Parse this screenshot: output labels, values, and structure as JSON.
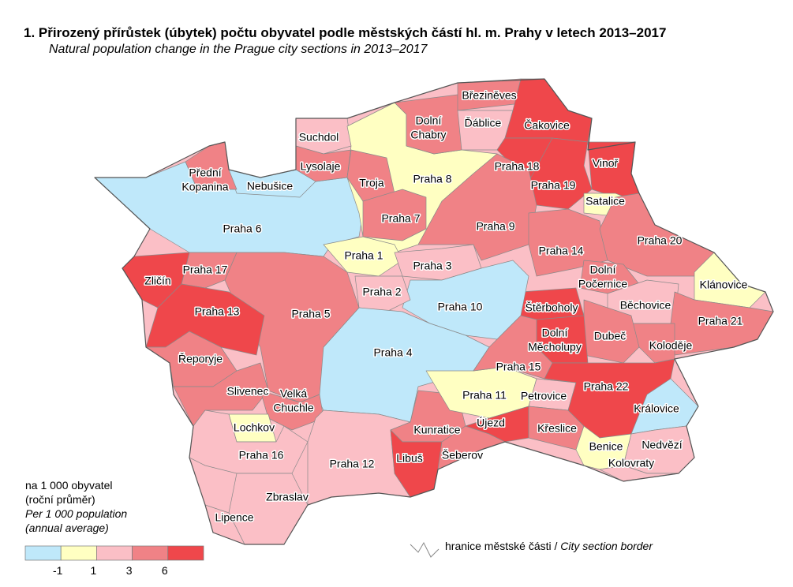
{
  "title": "1. Přirozený přírůstek (úbytek) počtu obyvatel podle městských částí hl. m. Prahy v letech 2013–2017",
  "subtitle": "Natural population change in the Prague city sections in 2013–2017",
  "districts": [
    {
      "label": [
        "Praha 6"
      ],
      "color": "#bfe8fa"
    },
    {
      "label": [
        "Nebušice"
      ],
      "color": "#bfe8fa"
    },
    {
      "label": [
        "Přední",
        "Kopanina"
      ],
      "color": "#f08286"
    },
    {
      "label": [
        "Suchdol"
      ],
      "color": "#fbbfc6"
    },
    {
      "label": [
        "Lysolaje"
      ],
      "color": "#f08286"
    },
    {
      "label": [
        "Praha 8"
      ],
      "color": "#ffffc2"
    },
    {
      "label": [
        "Troja"
      ],
      "color": "#f08286"
    },
    {
      "label": [
        "Dolní",
        "Chabry"
      ],
      "color": "#f08286"
    },
    {
      "label": [
        "Březiněves"
      ],
      "color": "#f08286"
    },
    {
      "label": [
        "Ďáblice"
      ],
      "color": "#fbbfc6"
    },
    {
      "label": [
        "Čakovice"
      ],
      "color": "#ef474b"
    },
    {
      "label": [
        "Praha 18"
      ],
      "color": "#ef474b"
    },
    {
      "label": [
        "Praha 19"
      ],
      "color": "#ef474b"
    },
    {
      "label": [
        "Vinoř"
      ],
      "color": "#ef474b"
    },
    {
      "label": [
        "Satalice"
      ],
      "color": "#ffffc2"
    },
    {
      "label": [
        "Praha 7"
      ],
      "color": "#f08286"
    },
    {
      "label": [
        "Praha 9"
      ],
      "color": "#f08286"
    },
    {
      "label": [
        "Praha 1"
      ],
      "color": "#ffffc2"
    },
    {
      "label": [
        "Praha 3"
      ],
      "color": "#fbbfc6"
    },
    {
      "label": [
        "Praha 14"
      ],
      "color": "#f08286"
    },
    {
      "label": [
        "Praha 20"
      ],
      "color": "#f08286"
    },
    {
      "label": [
        "Dolní",
        "Počernice"
      ],
      "color": "#f08286"
    },
    {
      "label": [
        "Klánovice"
      ],
      "color": "#ffffc2"
    },
    {
      "label": [
        "Běchovice"
      ],
      "color": "#fbbfc6"
    },
    {
      "label": [
        "Praha 21"
      ],
      "color": "#f08286"
    },
    {
      "label": [
        "Koloděje"
      ],
      "color": "#f08286"
    },
    {
      "label": [
        "Dubeč"
      ],
      "color": "#f08286"
    },
    {
      "label": [
        "Štěrboholy"
      ],
      "color": "#ef474b"
    },
    {
      "label": [
        "Dolní",
        "Měcholupy"
      ],
      "color": "#ef474b"
    },
    {
      "label": [
        "Praha 10"
      ],
      "color": "#bfe8fa"
    },
    {
      "label": [
        "Praha 2"
      ],
      "color": "#fbbfc6"
    },
    {
      "label": [
        "Praha 4"
      ],
      "color": "#bfe8fa"
    },
    {
      "label": [
        "Praha 5"
      ],
      "color": "#f08286"
    },
    {
      "label": [
        "Praha 17"
      ],
      "color": "#f08286"
    },
    {
      "label": [
        "Zličín"
      ],
      "color": "#ef474b"
    },
    {
      "label": [
        "Praha 13"
      ],
      "color": "#ef474b"
    },
    {
      "label": [
        "Řeporyje"
      ],
      "color": "#f08286"
    },
    {
      "label": [
        "Slivenec"
      ],
      "color": "#f08286"
    },
    {
      "label": [
        "Velká",
        "Chuchle"
      ],
      "color": "#f08286"
    },
    {
      "label": [
        "Lochkov"
      ],
      "color": "#ffffc2"
    },
    {
      "label": [
        "Praha 16"
      ],
      "color": "#fbbfc6"
    },
    {
      "label": [
        "Praha 12"
      ],
      "color": "#fbbfc6"
    },
    {
      "label": [
        "Zbraslav"
      ],
      "color": "#fbbfc6"
    },
    {
      "label": [
        "Lipence"
      ],
      "color": "#fbbfc6"
    },
    {
      "label": [
        "Kunratice"
      ],
      "color": "#f08286"
    },
    {
      "label": [
        "Libuš"
      ],
      "color": "#ef474b"
    },
    {
      "label": [
        "Šeberov"
      ],
      "color": "#f08286"
    },
    {
      "label": [
        "Praha 11"
      ],
      "color": "#ffffc2"
    },
    {
      "label": [
        "Praha 15"
      ],
      "color": "#f08286"
    },
    {
      "label": [
        "Petrovice"
      ],
      "color": "#fbbfc6"
    },
    {
      "label": [
        "Újezd"
      ],
      "color": "#ef474b"
    },
    {
      "label": [
        "Křeslice"
      ],
      "color": "#f08286"
    },
    {
      "label": [
        "Praha 22"
      ],
      "color": "#ef474b"
    },
    {
      "label": [
        "Královice"
      ],
      "color": "#bfe8fa"
    },
    {
      "label": [
        "Benice"
      ],
      "color": "#ffffc2"
    },
    {
      "label": [
        "Nedvězí"
      ],
      "color": "#fbbfc6"
    },
    {
      "label": [
        "Kolovraty"
      ],
      "color": "#fbbfc6"
    }
  ],
  "legend": {
    "lines": [
      "na 1 000 obyvatel",
      "(roční průměr)",
      "Per 1 000 population",
      "(annual average)"
    ],
    "classes": [
      "#bfe8fa",
      "#ffffc2",
      "#fbbfc6",
      "#f08286",
      "#ef474b"
    ],
    "ticks": [
      -1,
      1,
      3,
      6
    ]
  },
  "border_legend": {
    "cs": "hranice městské části /",
    "en": "City section border"
  }
}
